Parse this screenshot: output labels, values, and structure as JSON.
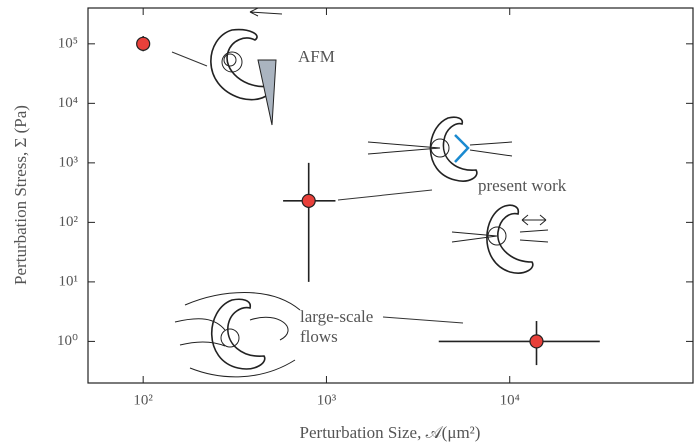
{
  "chart_data": {
    "type": "scatter",
    "xlabel": "Perturbation Size, 𝒜(μm²)",
    "ylabel": "Perturbation Stress, Σ (Pa)",
    "xscale": "log",
    "yscale": "log",
    "xlim": [
      50,
      100000
    ],
    "ylim": [
      0.2,
      400000
    ],
    "xticks": [
      {
        "value": 100,
        "label": "10²"
      },
      {
        "value": 1000,
        "label": "10³"
      },
      {
        "value": 10000,
        "label": "10⁴"
      }
    ],
    "yticks": [
      {
        "value": 1,
        "label": "10⁰"
      },
      {
        "value": 10,
        "label": "10¹"
      },
      {
        "value": 100,
        "label": "10²"
      },
      {
        "value": 1000,
        "label": "10³"
      },
      {
        "value": 10000,
        "label": "10⁴"
      },
      {
        "value": 100000,
        "label": "10⁵"
      }
    ],
    "color": "#e8403a",
    "x": [
      100,
      800,
      14000
    ],
    "y": [
      100000,
      230,
      1
    ],
    "x_low": [
      null,
      580,
      4100
    ],
    "x_high": [
      null,
      1120,
      31000
    ],
    "y_low": [
      75000,
      10,
      0.4
    ],
    "y_high": [
      135000,
      1000,
      2.2
    ],
    "annotations": [
      {
        "text": [
          "AFM"
        ]
      },
      {
        "text": [
          "present work"
        ]
      },
      {
        "text": [
          "large-scale",
          "flows"
        ]
      }
    ]
  }
}
